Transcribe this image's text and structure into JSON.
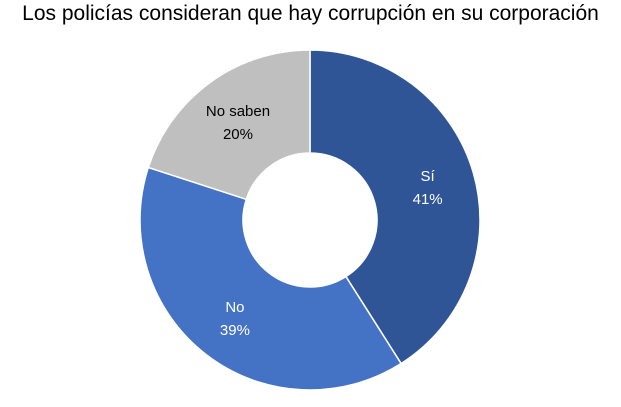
{
  "chart_data": {
    "type": "pie",
    "title": "Los policías consideran que hay corrupción en su corporación",
    "donut": true,
    "legend": "none",
    "slices": [
      {
        "label": "Sí",
        "value": 41,
        "value_label": "41%",
        "color": "#2F5597",
        "text_color": "#ffffff"
      },
      {
        "label": "No",
        "value": 39,
        "value_label": "39%",
        "color": "#4472C4",
        "text_color": "#ffffff"
      },
      {
        "label": "No saben",
        "value": 20,
        "value_label": "20%",
        "color": "#BFBFBF",
        "text_color": "#000000"
      }
    ]
  }
}
